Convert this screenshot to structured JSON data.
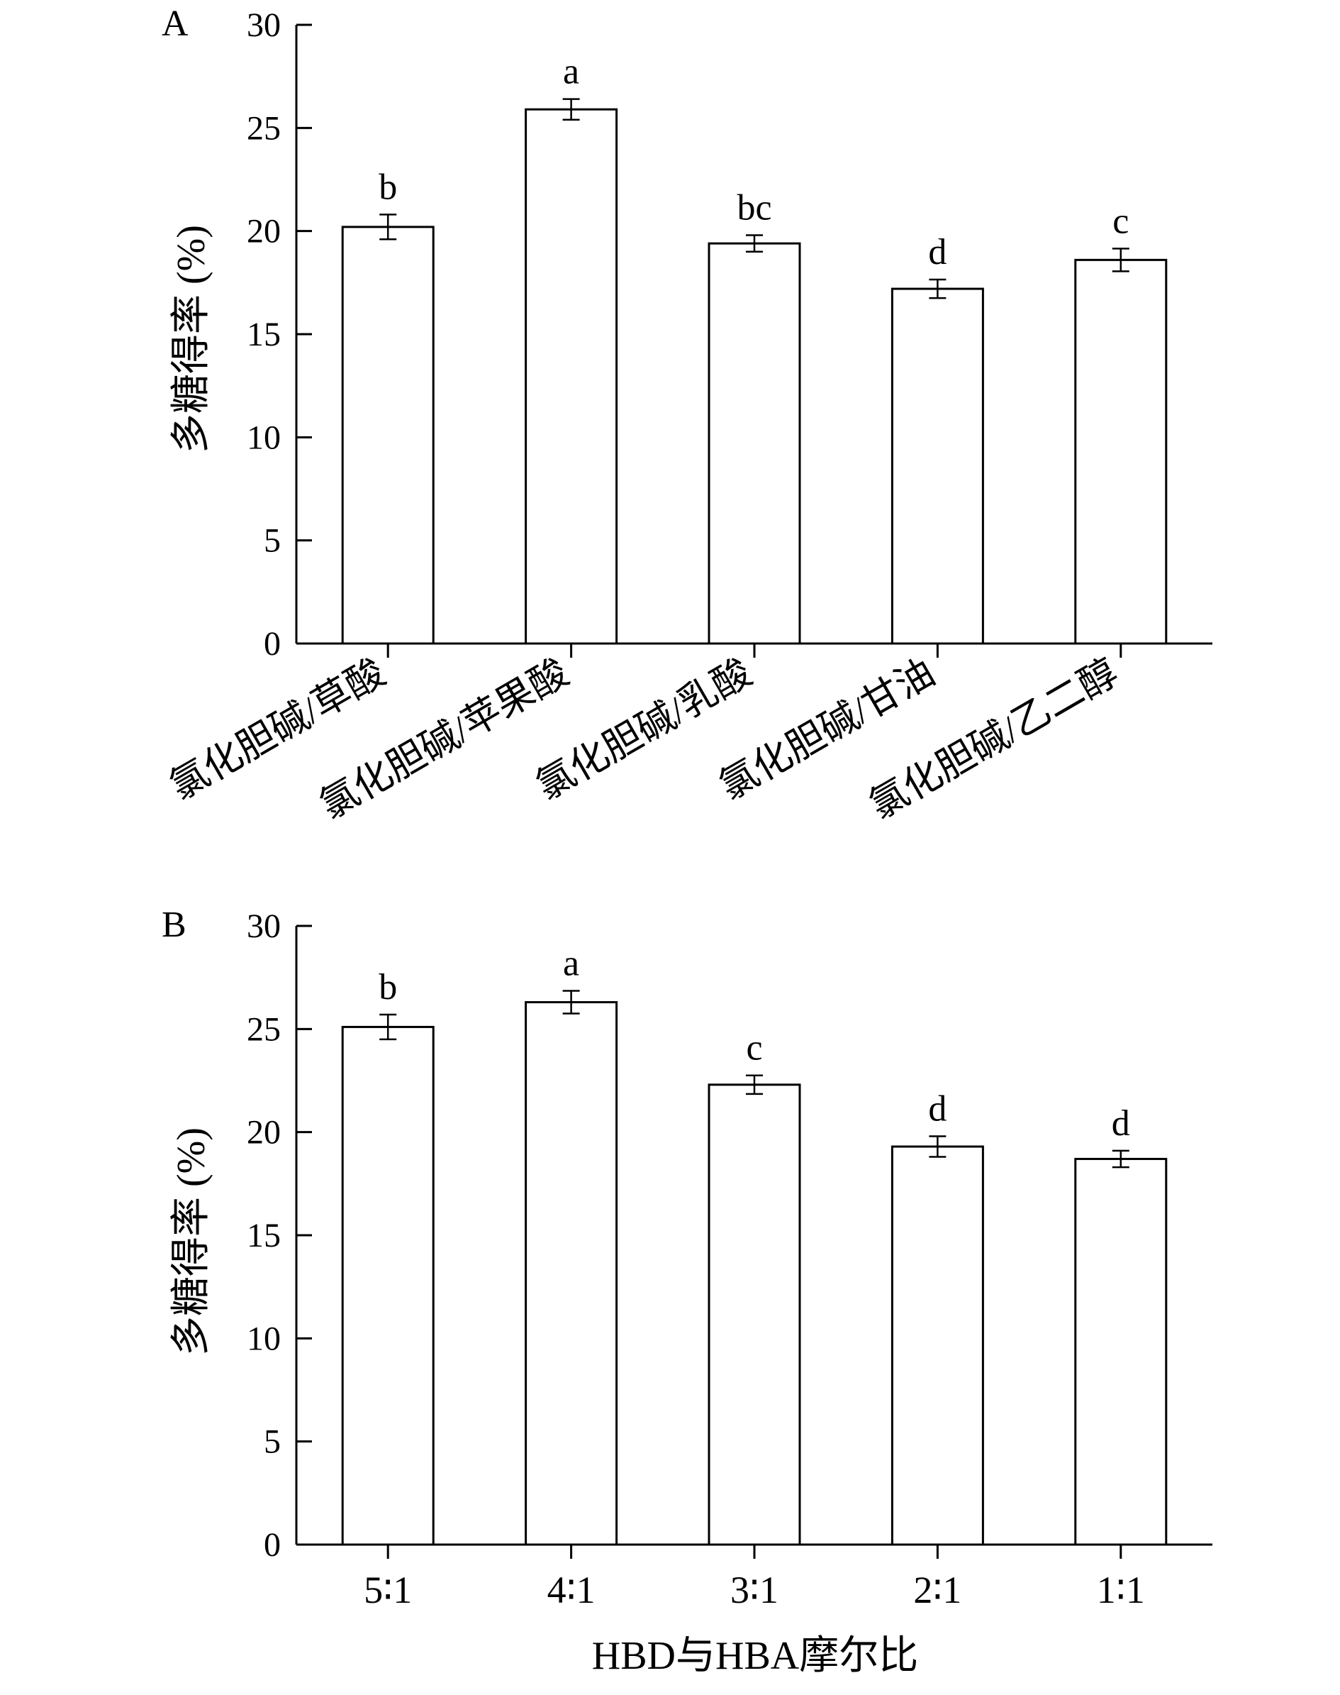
{
  "chart_data": [
    {
      "type": "bar",
      "panel_label": "A",
      "title": "",
      "xlabel": "",
      "ylabel": "多糖得率 (%)",
      "ylim": [
        0,
        30
      ],
      "yticks": [
        0,
        5,
        10,
        15,
        20,
        25,
        30
      ],
      "categories": [
        "氯化胆碱/草酸",
        "氯化胆碱/苹果酸",
        "氯化胆碱/乳酸",
        "氯化胆碱/甘油",
        "氯化胆碱/乙二醇"
      ],
      "values": [
        20.2,
        25.9,
        19.4,
        17.2,
        18.6
      ],
      "errors": [
        0.6,
        0.5,
        0.4,
        0.45,
        0.55
      ],
      "significance": [
        "b",
        "a",
        "bc",
        "d",
        "c"
      ],
      "bar_fill": "#ffffff",
      "bar_stroke": "#000000"
    },
    {
      "type": "bar",
      "panel_label": "B",
      "title": "",
      "xlabel": "HBD与HBA摩尔比",
      "ylabel": "多糖得率 (%)",
      "ylim": [
        0,
        30
      ],
      "yticks": [
        0,
        5,
        10,
        15,
        20,
        25,
        30
      ],
      "categories": [
        "5∶1",
        "4∶1",
        "3∶1",
        "2∶1",
        "1∶1"
      ],
      "values": [
        25.1,
        26.3,
        22.3,
        19.3,
        18.7
      ],
      "errors": [
        0.6,
        0.55,
        0.45,
        0.5,
        0.4
      ],
      "significance": [
        "b",
        "a",
        "c",
        "d",
        "d"
      ],
      "bar_fill": "#ffffff",
      "bar_stroke": "#000000"
    }
  ]
}
